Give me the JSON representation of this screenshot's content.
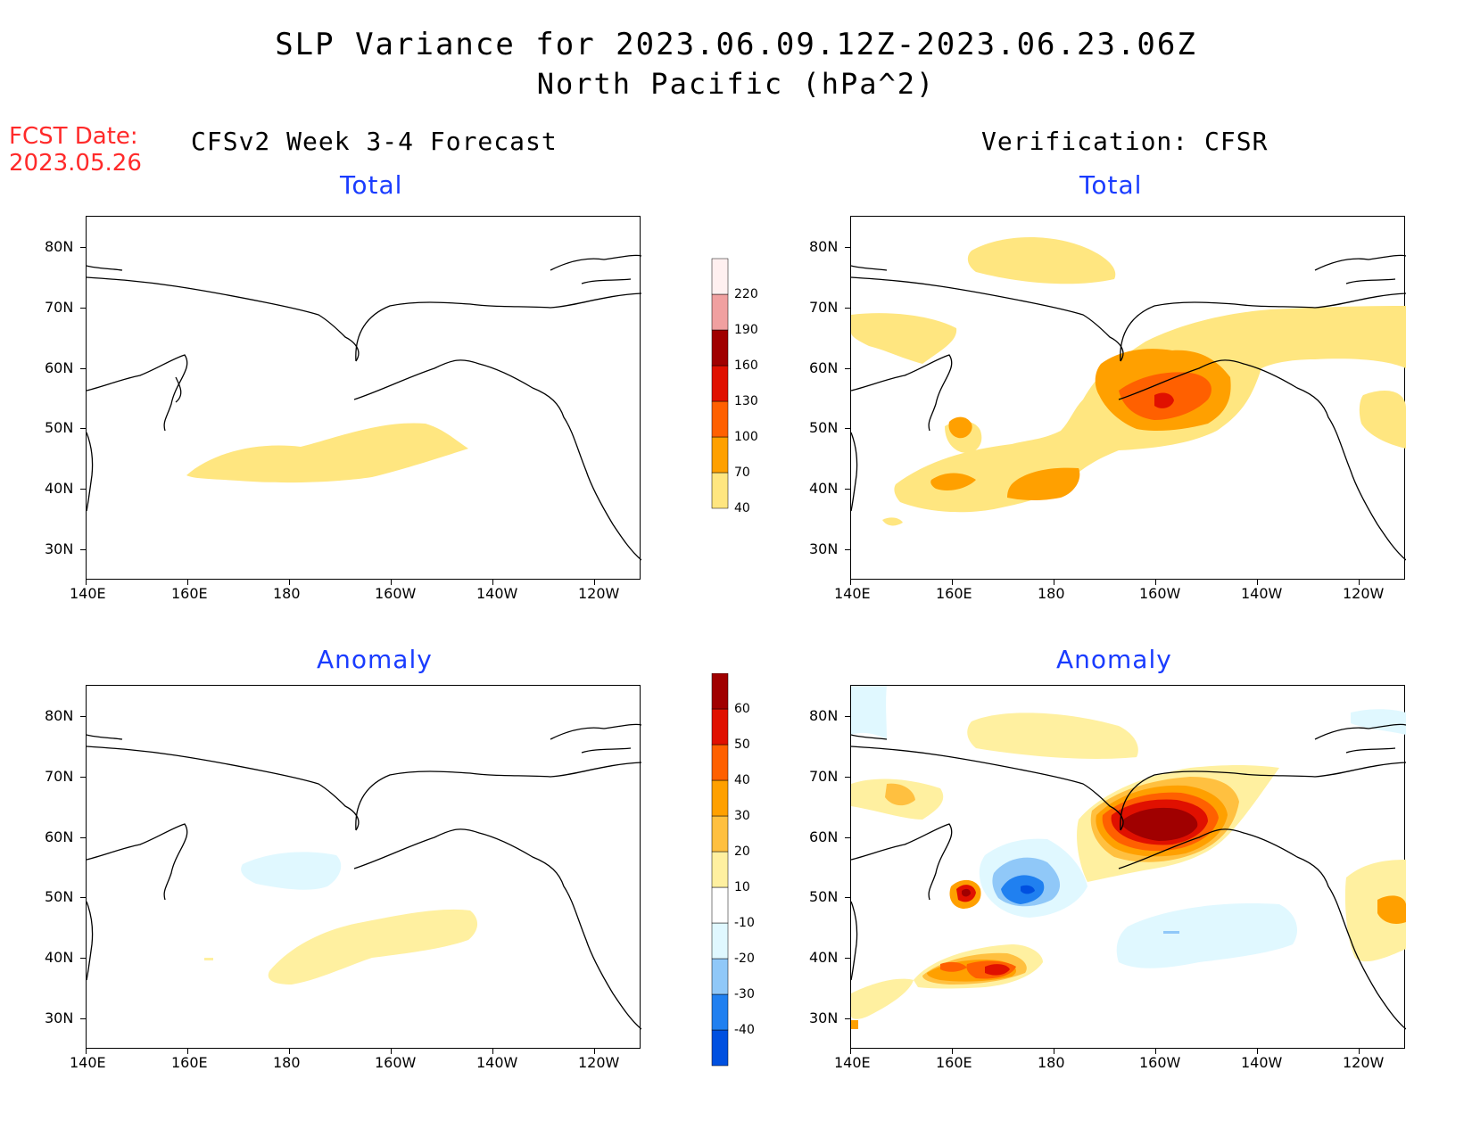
{
  "title": {
    "line1": "SLP Variance for 2023.06.09.12Z-2023.06.23.06Z",
    "line2": "North Pacific (hPa^2)"
  },
  "forecast_date": {
    "label": "FCST Date:",
    "value": "2023.05.26"
  },
  "columns": {
    "left": "CFSv2 Week 3-4 Forecast",
    "right": "Verification: CFSR"
  },
  "panel_titles": {
    "total": "Total",
    "anomaly": "Anomaly"
  },
  "axes": {
    "lat_labels": [
      "80N",
      "70N",
      "60N",
      "50N",
      "40N",
      "30N"
    ],
    "lon_labels": [
      "140E",
      "160E",
      "180",
      "160W",
      "140W",
      "120W"
    ]
  },
  "colorbar_total": {
    "labels": [
      "40",
      "70",
      "100",
      "130",
      "160",
      "190",
      "220"
    ],
    "colors": [
      "#ffe680",
      "#ffa000",
      "#ff6000",
      "#e01000",
      "#a00000",
      "#f0a0a0",
      "#fff0f0"
    ]
  },
  "colorbar_anomaly": {
    "labels": [
      "-40",
      "-30",
      "-20",
      "-10",
      "10",
      "20",
      "30",
      "40",
      "50",
      "60"
    ],
    "colors": [
      "#0050e0",
      "#2080f0",
      "#90c8f8",
      "#e0f8ff",
      "#ffffff",
      "#fff0a0",
      "#ffc040",
      "#ffa000",
      "#ff6000",
      "#e01000",
      "#a00000"
    ]
  },
  "chart_data": {
    "type": "heatmap",
    "variable": "SLP Variance",
    "units": "hPa^2",
    "region": "North Pacific",
    "period": "2023.06.09.12Z-2023.06.23.06Z",
    "forecast_date": "2023.05.26",
    "lon_range": [
      "140E",
      "110W"
    ],
    "lat_range": [
      "25N",
      "85N"
    ],
    "panels": [
      {
        "name": "CFSv2 Week 3-4 Forecast Total",
        "max_level": "40-70",
        "notes": "single 40-70 band near 40-50N, 160E-150W"
      },
      {
        "name": "CFSR Total",
        "max_level": "130-160",
        "notes": "max over Gulf of Alaska/Alaska Peninsula ~55N 155W"
      },
      {
        "name": "CFSv2 Week 3-4 Forecast Anomaly",
        "range": "-20 to 20",
        "notes": "weak positive band 40-48N, weak negative ~52N 175E"
      },
      {
        "name": "CFSR Anomaly",
        "range": "-40 to 60",
        "notes": "max >50 ~57N 155W; min -40 to -30 ~47N 180"
      }
    ]
  }
}
